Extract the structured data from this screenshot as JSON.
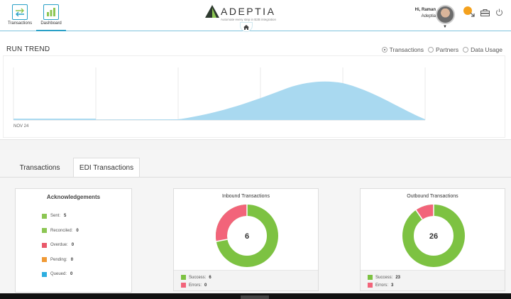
{
  "header": {
    "nav": [
      {
        "label": "Transactions",
        "icon": "transfer-arrows-icon"
      },
      {
        "label": "Dashboard",
        "icon": "bar-chart-icon"
      }
    ],
    "logo_text": "ADEPTIA",
    "logo_tagline": "Automate every step in B2B integration",
    "user_greeting": "Hi, Raman",
    "user_org": "Adeptia"
  },
  "run_trend": {
    "title": "RUN TREND",
    "options": [
      "Transactions",
      "Partners",
      "Data Usage"
    ],
    "selected": "Transactions"
  },
  "chart_data": {
    "type": "area",
    "x_tick_labels": [
      "NOV 24"
    ],
    "fill_color": "#a9d9f0"
  },
  "tabs": [
    "Transactions",
    "EDI Transactions"
  ],
  "active_tab": "EDI Transactions",
  "acknowledgements": {
    "title": "Acknowledgements",
    "items": [
      {
        "label": "Sent:",
        "value": "5",
        "color": "#8cc653"
      },
      {
        "label": "Reconciled:",
        "value": "0",
        "color": "#8cc653"
      },
      {
        "label": "Overdue:",
        "value": "0",
        "color": "#e9596a"
      },
      {
        "label": "Pending:",
        "value": "0",
        "color": "#f09a36"
      },
      {
        "label": "Queued:",
        "value": "0",
        "color": "#2eaee0"
      }
    ]
  },
  "inbound": {
    "title": "Inbound Transactions",
    "total": "6",
    "success_label": "Success:",
    "success": "6",
    "errors_label": "Errors:",
    "errors": "0"
  },
  "outbound": {
    "title": "Outbound Transactions",
    "total": "26",
    "success_label": "Success:",
    "success": "23",
    "errors_label": "Errors:",
    "errors": "3"
  },
  "colors": {
    "success": "#7dc242",
    "error": "#f2647a",
    "accent": "#2aa0c7"
  }
}
